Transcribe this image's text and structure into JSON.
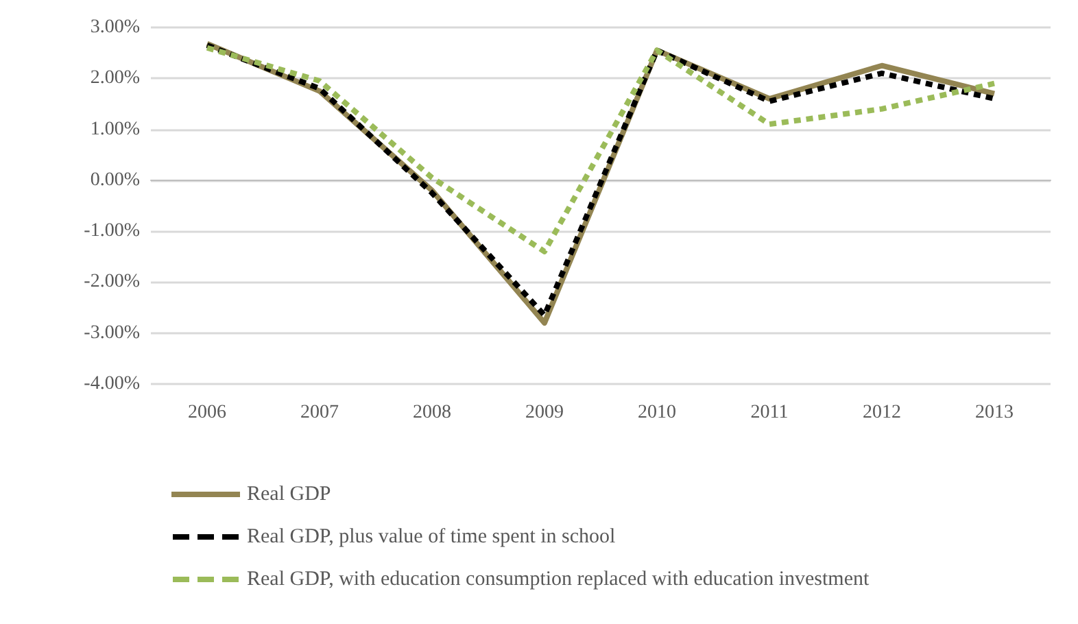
{
  "chart_data": {
    "type": "line",
    "categories": [
      "2006",
      "2007",
      "2008",
      "2009",
      "2010",
      "2011",
      "2012",
      "2013"
    ],
    "series": [
      {
        "name": "Real GDP",
        "color": "#938552",
        "line_style": "solid",
        "values": [
          2.68,
          1.75,
          -0.2,
          -2.8,
          2.55,
          1.6,
          2.25,
          1.7
        ]
      },
      {
        "name": "Real GDP, plus value of time spent in school",
        "color": "#000000",
        "line_style": "dashed",
        "values": [
          2.65,
          1.8,
          -0.25,
          -2.65,
          2.55,
          1.55,
          2.1,
          1.6
        ]
      },
      {
        "name": "Real GDP, with education consumption replaced with education investment",
        "color": "#9bbb59",
        "line_style": "dashed",
        "values": [
          2.6,
          1.95,
          0.05,
          -1.4,
          2.55,
          1.1,
          1.4,
          1.9
        ]
      }
    ],
    "ylim": [
      -4,
      3
    ],
    "yticks": [
      {
        "value": -4,
        "label": "-4.00%"
      },
      {
        "value": -3,
        "label": "-3.00%"
      },
      {
        "value": -2,
        "label": "-2.00%"
      },
      {
        "value": -1,
        "label": "-1.00%"
      },
      {
        "value": 0,
        "label": "0.00%"
      },
      {
        "value": 1,
        "label": "1.00%"
      },
      {
        "value": 2,
        "label": "2.00%"
      },
      {
        "value": 3,
        "label": "3.00%"
      }
    ],
    "grid": "y",
    "legend": "bottom",
    "marker": "none"
  }
}
